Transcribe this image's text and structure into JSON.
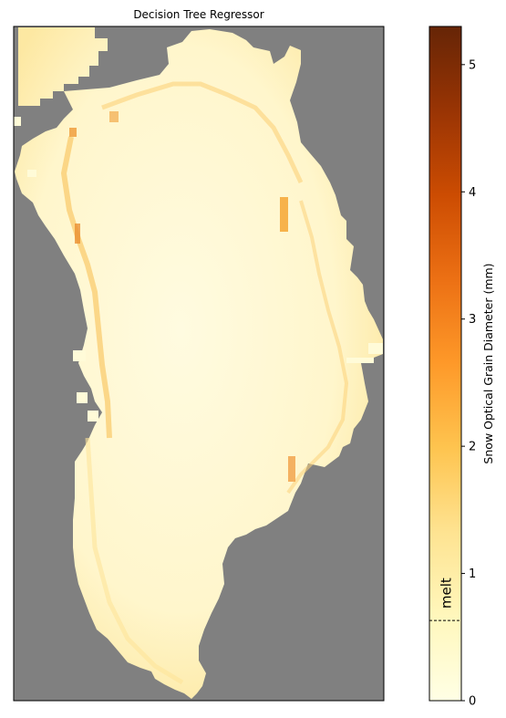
{
  "chart_data": {
    "type": "heatmap",
    "title": "Decision Tree Regressor",
    "colorbar": {
      "label": "Snow Optical Grain Diameter (mm)",
      "range": [
        0,
        5.3
      ],
      "ticks": [
        0,
        1,
        2,
        3,
        4,
        5
      ],
      "tick_labels": [
        "0",
        "1",
        "2",
        "3",
        "4",
        "5"
      ],
      "colormap": "YlOrBr",
      "threshold": {
        "label": "melt",
        "value": 0.63,
        "style": "dashed"
      }
    },
    "background_color": "#808080",
    "axes": {
      "x_ticks": false,
      "y_ticks": false
    },
    "map_region": "Greenland ice sheet",
    "typical_values": {
      "interior": 0.3,
      "margins": 1.5,
      "max_patch": 2.3
    }
  },
  "colors": {
    "nodata": "#808080",
    "ice_low": "#fffbd8",
    "ice_mid": "#fde9a6",
    "ice_high": "#f5a23a",
    "colormap_stops": [
      "#ffffe5",
      "#fff7bc",
      "#fee391",
      "#fec44f",
      "#fe9929",
      "#ec7014",
      "#cc4c02",
      "#993404",
      "#662506"
    ]
  }
}
